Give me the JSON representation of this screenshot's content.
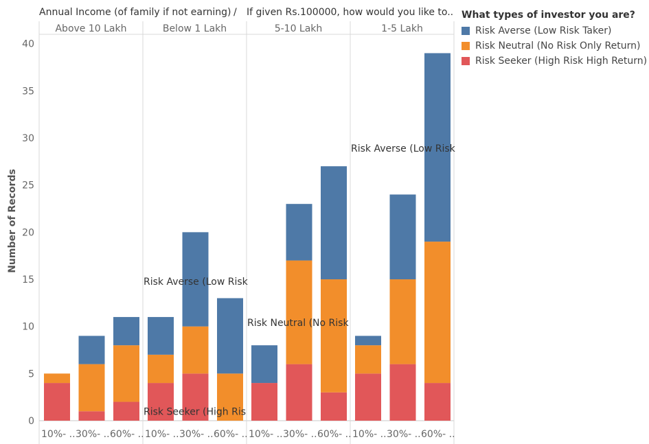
{
  "header": {
    "row_field": "Annual Income (of family if not earning)",
    "separator": "/",
    "col_field": "If given Rs.100000, how would you like to.."
  },
  "legend": {
    "title": "What types of investor you are?",
    "items": [
      {
        "label": "Risk Averse (Low Risk Taker)",
        "color": "#4e79a7"
      },
      {
        "label": "Risk Neutral (No Risk Only Return)",
        "color": "#f28e2b"
      },
      {
        "label": "Risk Seeker (High Risk High Return)",
        "color": "#e15759"
      }
    ]
  },
  "chart_data": {
    "type": "bar",
    "stacked": true,
    "ylabel": "Number of Records",
    "ylim": [
      0,
      41
    ],
    "yticks": [
      0,
      5,
      10,
      15,
      20,
      25,
      30,
      35,
      40
    ],
    "panels": [
      {
        "name": "Above 10 Lakh",
        "categories": [
          "10%- ..",
          "30%- ..",
          "60%- .."
        ],
        "series": {
          "Risk Seeker": [
            4,
            1,
            2
          ],
          "Risk Neutral": [
            1,
            5,
            6
          ],
          "Risk Averse": [
            0,
            3,
            3
          ]
        }
      },
      {
        "name": "Below 1 Lakh",
        "categories": [
          "10%- ..",
          "30%- ..",
          "60%- .."
        ],
        "series": {
          "Risk Seeker": [
            4,
            5,
            0
          ],
          "Risk Neutral": [
            3,
            5,
            5
          ],
          "Risk Averse": [
            4,
            10,
            8
          ]
        }
      },
      {
        "name": "5-10 Lakh",
        "categories": [
          "10%- ..",
          "30%- ..",
          "60%- .."
        ],
        "series": {
          "Risk Seeker": [
            4,
            6,
            3
          ],
          "Risk Neutral": [
            0,
            11,
            12
          ],
          "Risk Averse": [
            4,
            6,
            12
          ]
        }
      },
      {
        "name": "1-5 Lakh",
        "categories": [
          "10%- ..",
          "30%- ..",
          "60%- .."
        ],
        "series": {
          "Risk Seeker": [
            5,
            6,
            4
          ],
          "Risk Neutral": [
            3,
            9,
            15
          ],
          "Risk Averse": [
            1,
            9,
            20
          ]
        }
      }
    ],
    "series_order": [
      "Risk Seeker",
      "Risk Neutral",
      "Risk Averse"
    ],
    "colors": {
      "Risk Averse": "#4e79a7",
      "Risk Neutral": "#f28e2b",
      "Risk Seeker": "#e15759"
    },
    "annotations": [
      {
        "text": "Risk Averse (Low Risk",
        "panel": 1,
        "y": 14.8
      },
      {
        "text": "Risk Seeker (High Ris",
        "panel": 1,
        "y": 1.0
      },
      {
        "text": "Risk Neutral (No Risk",
        "panel": 2,
        "y": 10.4
      },
      {
        "text": "Risk Averse (Low Risk",
        "panel": 3,
        "y": 28.9
      }
    ]
  }
}
